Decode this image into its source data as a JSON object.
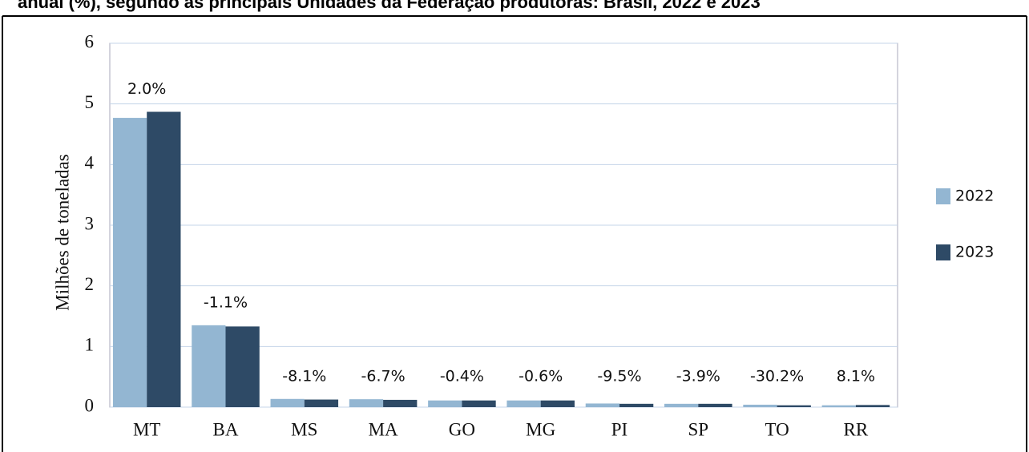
{
  "chart_data": {
    "type": "bar",
    "title": "anual (%), segundo as principais Unidades da Federação produtoras: Brasil, 2022 e 2023",
    "y_label": "Milhões de toneladas",
    "categories": [
      "MT",
      "BA",
      "MS",
      "MA",
      "GO",
      "MG",
      "PI",
      "SP",
      "TO",
      "RR"
    ],
    "series": [
      {
        "name": "2022",
        "color": "#93b6d2",
        "values": [
          4.77,
          1.35,
          0.135,
          0.13,
          0.11,
          0.11,
          0.06,
          0.055,
          0.04,
          0.03
        ]
      },
      {
        "name": "2023",
        "color": "#2e4a66",
        "values": [
          4.87,
          1.33,
          0.125,
          0.12,
          0.11,
          0.11,
          0.055,
          0.055,
          0.03,
          0.035
        ]
      }
    ],
    "annotations": [
      "2.0%",
      "-1.1%",
      "-8.1%",
      "-6.7%",
      "-0.4%",
      "-0.6%",
      "-9.5%",
      "-3.9%",
      "-30.2%",
      "8.1%"
    ],
    "ylim": [
      0,
      6
    ],
    "yticks": [
      0,
      1,
      2,
      3,
      4,
      5,
      6
    ],
    "grid": true,
    "legend": "right"
  }
}
